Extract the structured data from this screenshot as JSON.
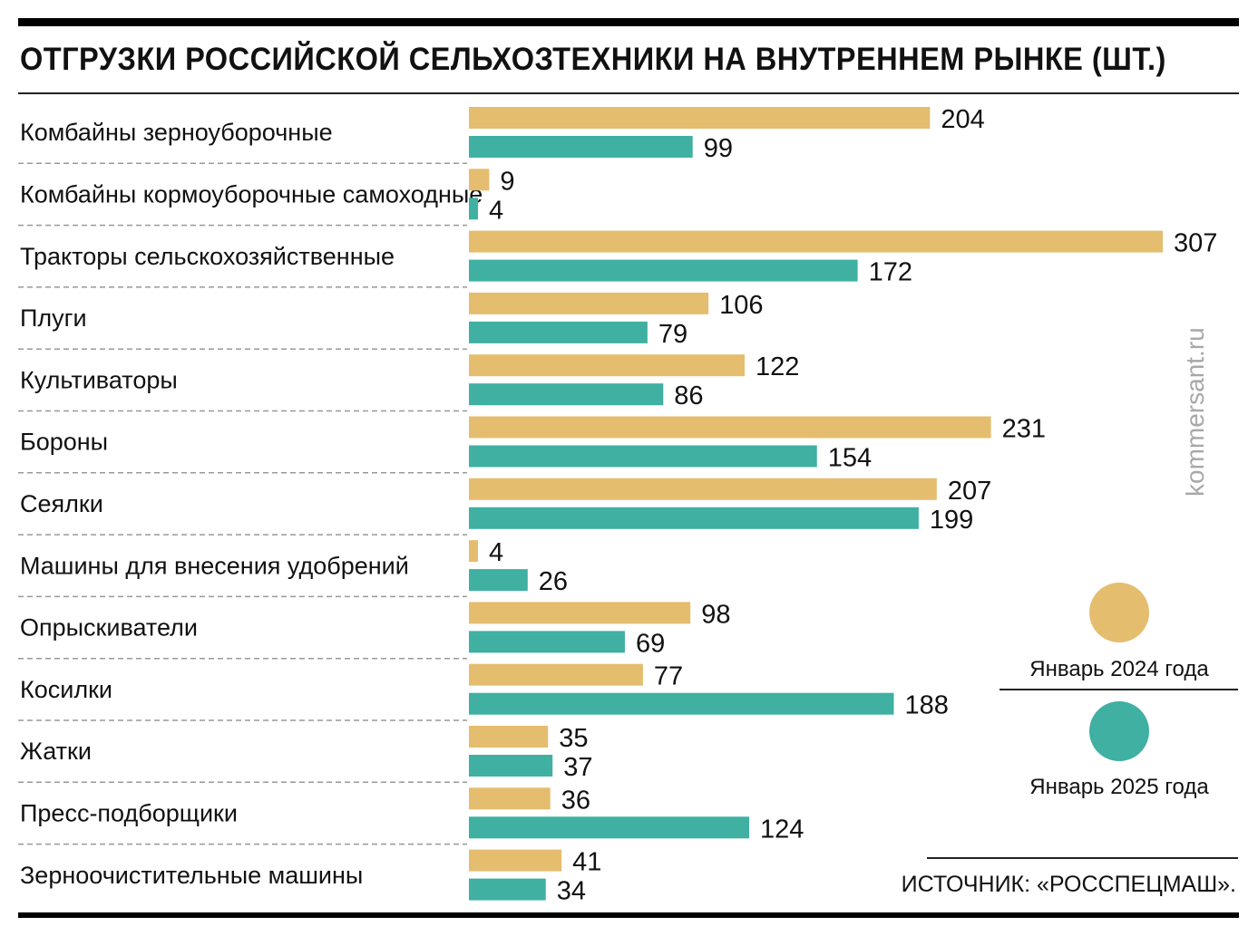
{
  "header": {
    "title": "ОТГРУЗКИ РОССИЙСКОЙ СЕЛЬХОЗТЕХНИКИ НА ВНУТРЕННЕМ РЫНКЕ (ШТ.)"
  },
  "watermark": "kommersant.ru",
  "legend": {
    "items": [
      {
        "label": "Январь 2024 года",
        "color": "#E5BD6F"
      },
      {
        "label": "Январь 2025 года",
        "color": "#3FB0A2"
      }
    ]
  },
  "source": "ИСТОЧНИК: «РОССПЕЦМАШ».",
  "chart_data": {
    "type": "bar",
    "orientation": "horizontal",
    "title": "ОТГРУЗКИ РОССИЙСКОЙ СЕЛЬХОЗТЕХНИКИ НА ВНУТРЕННЕМ РЫНКЕ (ШТ.)",
    "xlabel": "",
    "ylabel": "",
    "xlim": [
      0,
      307
    ],
    "grid": false,
    "legend_position": "right",
    "categories": [
      "Комбайны зерноуборочные",
      "Комбайны кормоуборочные самоходные",
      "Тракторы сельскохозяйственные",
      "Плуги",
      "Культиваторы",
      "Бороны",
      "Сеялки",
      "Машины для внесения удобрений",
      "Опрыскиватели",
      "Косилки",
      "Жатки",
      "Пресс-подборщики",
      "Зерноочистительные машины"
    ],
    "series": [
      {
        "name": "Январь 2024 года",
        "color": "#E5BD6F",
        "values": [
          204,
          9,
          307,
          106,
          122,
          231,
          207,
          4,
          98,
          77,
          35,
          36,
          41
        ]
      },
      {
        "name": "Январь 2025 года",
        "color": "#3FB0A2",
        "values": [
          99,
          4,
          172,
          79,
          86,
          154,
          199,
          26,
          69,
          188,
          37,
          124,
          34
        ]
      }
    ]
  }
}
